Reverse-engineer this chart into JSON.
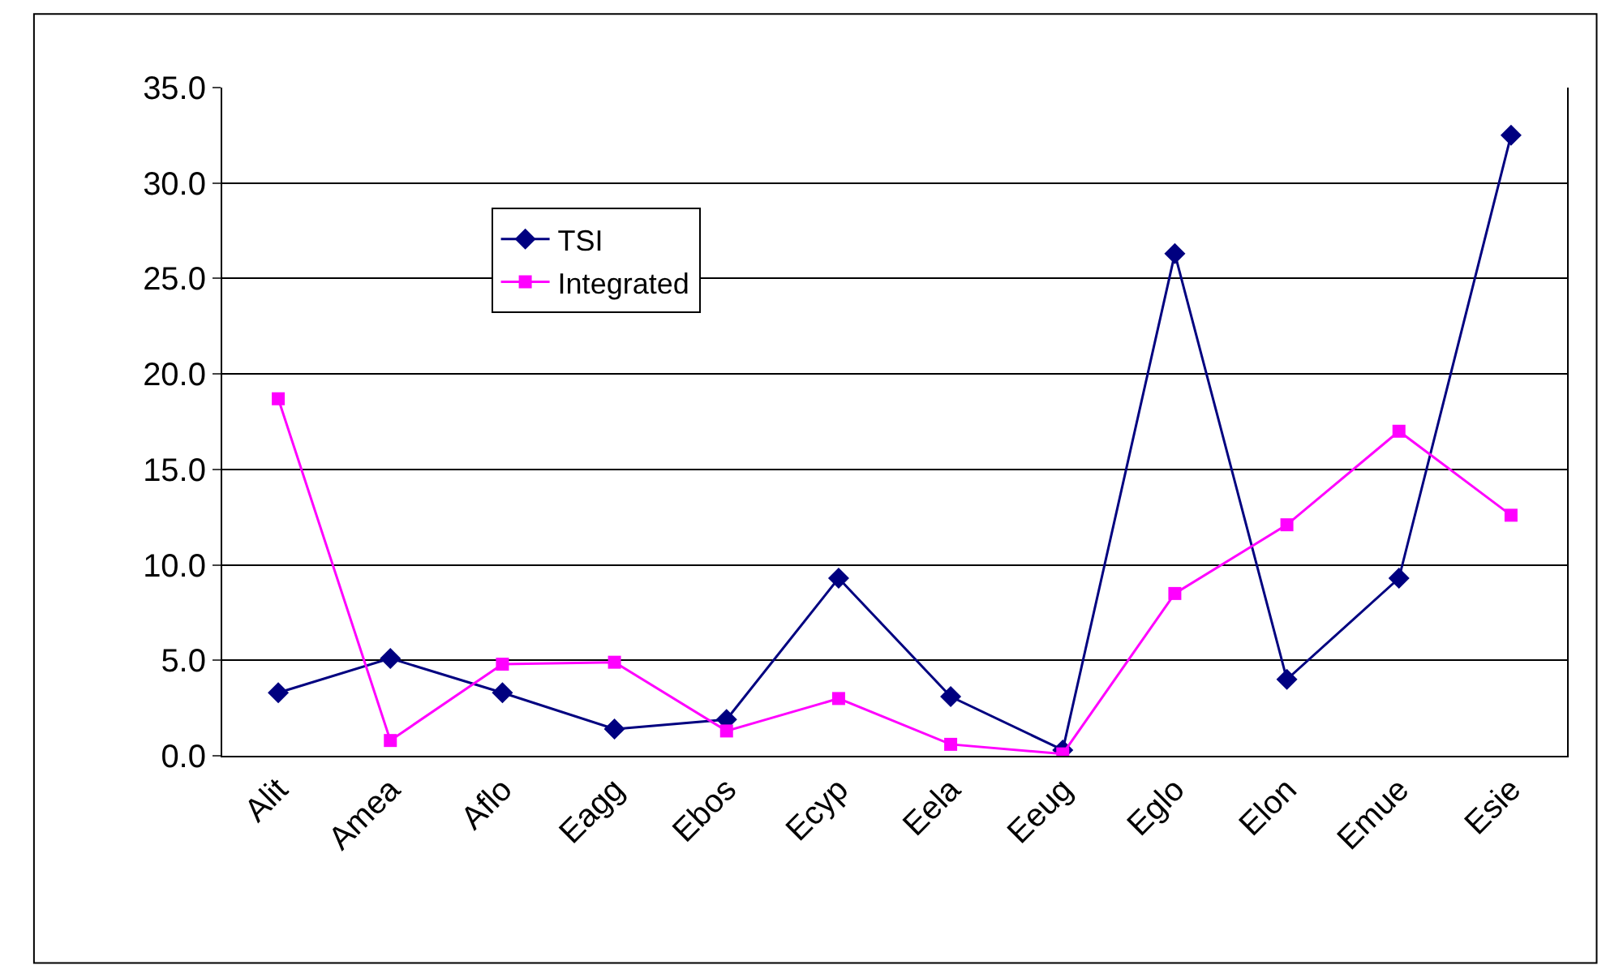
{
  "chart_data": {
    "type": "line",
    "categories": [
      "Alit",
      "Amea",
      "Aflo",
      "Eagg",
      "Ebos",
      "Ecyp",
      "Eela",
      "Eeug",
      "Eglo",
      "Elon",
      "Emue",
      "Esie"
    ],
    "series": [
      {
        "name": "TSI",
        "color": "#000080",
        "marker": "diamond",
        "values": [
          3.3,
          5.1,
          3.3,
          1.4,
          1.9,
          9.3,
          3.1,
          0.3,
          26.3,
          4.0,
          9.3,
          32.5
        ]
      },
      {
        "name": "Integrated",
        "color": "#ff00ff",
        "marker": "square",
        "values": [
          18.7,
          0.8,
          4.8,
          4.9,
          1.3,
          3.0,
          0.6,
          0.1,
          8.5,
          12.1,
          17.0,
          12.6
        ]
      }
    ],
    "ylim": [
      0,
      35
    ],
    "yticks": [
      {
        "value": 0,
        "label": "0.0"
      },
      {
        "value": 5,
        "label": "5.0"
      },
      {
        "value": 10,
        "label": "10.0"
      },
      {
        "value": 15,
        "label": "15.0"
      },
      {
        "value": 20,
        "label": "20.0"
      },
      {
        "value": 25,
        "label": "25.0"
      },
      {
        "value": 30,
        "label": "30.0"
      },
      {
        "value": 35,
        "label": "35.0"
      }
    ],
    "grid": "y",
    "legend": "top left",
    "line_style": "solid"
  }
}
